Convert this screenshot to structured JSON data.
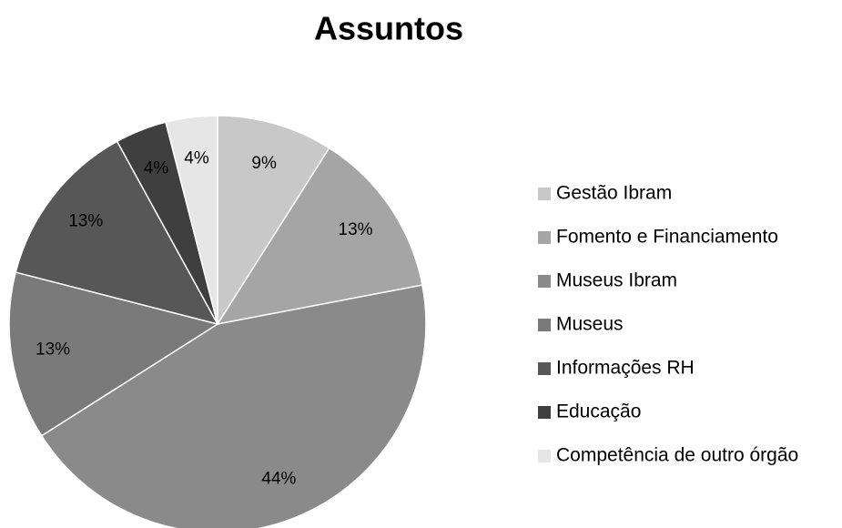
{
  "chart_data": {
    "type": "pie",
    "title": "Assuntos",
    "categories": [
      "Gestão Ibram",
      "Fomento e Financiamento",
      "Museus Ibram",
      "Museus",
      "Informações RH",
      "Educação",
      "Competência de outro órgão"
    ],
    "values": [
      9,
      13,
      44,
      13,
      13,
      4,
      4
    ],
    "value_labels": [
      "9%",
      "13%",
      "44%",
      "13%",
      "13%",
      "4%",
      "4%"
    ],
    "colors": [
      "#c8c8c8",
      "#a5a5a5",
      "#8a8a8a",
      "#7a7a7a",
      "#575757",
      "#3f3f3f",
      "#e6e6e6"
    ],
    "legend": "right"
  }
}
